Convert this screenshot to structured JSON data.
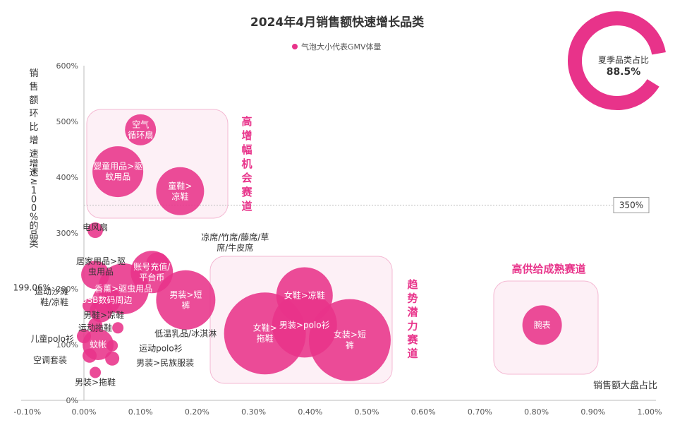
{
  "colors": {
    "bubble": "#e8338a",
    "bubble_light": "#f06aa8",
    "zone_fill": "#fdf0f6",
    "zone_stroke": "#f4b9d3",
    "text": "#333333",
    "grid": "#bbbbbb"
  },
  "chart_data": {
    "type": "scatter",
    "title": "2024年4月销售额快速增长品类",
    "legend": "气泡大小代表GMV体量",
    "xlabel": "销售额大盘占比",
    "ylabel": [
      "销",
      "售",
      "额",
      "环",
      "比",
      "增",
      "速",
      "*",
      "增",
      "速",
      "≥",
      "1",
      "0",
      "0",
      "%",
      "的",
      "品",
      "类"
    ],
    "xlim": [
      -0.1,
      1.0
    ],
    "ylim": [
      0,
      600
    ],
    "x_ticks": [
      "-0.10%",
      "0.00%",
      "0.10%",
      "0.20%",
      "0.30%",
      "0.40%",
      "0.50%",
      "0.60%",
      "0.70%",
      "0.80%",
      "0.90%",
      "1.00%"
    ],
    "y_ticks": [
      "0%",
      "100%",
      "200%",
      "300%",
      "400%",
      "500%",
      "600%"
    ],
    "reference_line": {
      "y": 350,
      "label": "350%"
    },
    "annotation_y": {
      "y": 199.06,
      "label": "199.06%"
    },
    "donut": {
      "label": "夏季品类占比",
      "value_label": "88.5%",
      "value": 88.5
    },
    "zones": [
      {
        "name": "高增幅机会赛道",
        "chars": [
          "高",
          "增",
          "幅",
          "机",
          "会",
          "赛",
          "道"
        ]
      },
      {
        "name": "趋势潜力赛道",
        "chars": [
          "趋",
          "势",
          "潜",
          "力",
          "赛",
          "道"
        ]
      },
      {
        "name": "高供给成熟赛道",
        "chars": [
          "高供给成熟赛道"
        ]
      }
    ],
    "series": [
      {
        "label": [
          "空气",
          "循环扇"
        ],
        "x": 0.1,
        "y": 485,
        "size": 22,
        "inside": true
      },
      {
        "label": [
          "婴童用品>驱",
          "蚊用品"
        ],
        "x": 0.06,
        "y": 410,
        "size": 36,
        "inside": true
      },
      {
        "label": [
          "童鞋>",
          "凉鞋"
        ],
        "x": 0.17,
        "y": 375,
        "size": 34,
        "inside": true
      },
      {
        "label": [
          "电风扇"
        ],
        "x": 0.02,
        "y": 305,
        "size": 11,
        "inside": false
      },
      {
        "label": [
          "凉席/竹席/藤席/草",
          "席/牛皮席"
        ],
        "x": 0.13,
        "y": 245,
        "size": 16,
        "inside": false
      },
      {
        "label": [
          "账号充值/",
          "平台币"
        ],
        "x": 0.12,
        "y": 230,
        "size": 30,
        "inside": true
      },
      {
        "label": [
          "居家用品>驱",
          "虫用品"
        ],
        "x": 0.02,
        "y": 225,
        "size": 20,
        "inside": false
      },
      {
        "label": [
          "香薰>驱虫用品"
        ],
        "x": 0.07,
        "y": 200,
        "size": 36,
        "inside": true
      },
      {
        "label": [
          "男装>短",
          "裤"
        ],
        "x": 0.18,
        "y": 180,
        "size": 42,
        "inside": true
      },
      {
        "label": [
          "USB数码周边"
        ],
        "x": 0.04,
        "y": 180,
        "size": 20,
        "inside": true
      },
      {
        "label": [
          "运动沙滩",
          "鞋/凉鞋"
        ],
        "x": 0.01,
        "y": 170,
        "size": 10,
        "inside": false
      },
      {
        "label": [
          "男鞋>凉鞋"
        ],
        "x": 0.03,
        "y": 160,
        "size": 16,
        "inside": false
      },
      {
        "label": [
          "运动拖鞋"
        ],
        "x": 0.02,
        "y": 135,
        "size": 10,
        "inside": false
      },
      {
        "label": [
          "低温乳品/冰淇淋"
        ],
        "x": 0.06,
        "y": 130,
        "size": 8,
        "inside": false
      },
      {
        "label": [
          "儿童polo衫"
        ],
        "x": 0.0,
        "y": 115,
        "size": 10,
        "inside": false
      },
      {
        "label": [
          "蚊帐"
        ],
        "x": 0.025,
        "y": 100,
        "size": 22,
        "inside": true
      },
      {
        "label": [
          "运动polo衫"
        ],
        "x": 0.05,
        "y": 98,
        "size": 8,
        "inside": false
      },
      {
        "label": [
          "空调套装"
        ],
        "x": 0.01,
        "y": 80,
        "size": 10,
        "inside": false
      },
      {
        "label": [
          "男装>民族服装"
        ],
        "x": 0.05,
        "y": 75,
        "size": 10,
        "inside": false
      },
      {
        "label": [
          "男装>拖鞋"
        ],
        "x": 0.02,
        "y": 50,
        "size": 8,
        "inside": false
      },
      {
        "label": [
          "女鞋>",
          "拖鞋"
        ],
        "x": 0.32,
        "y": 120,
        "size": 58,
        "inside": true
      },
      {
        "label": [
          "女鞋>凉鞋"
        ],
        "x": 0.39,
        "y": 188,
        "size": 40,
        "inside": true
      },
      {
        "label": [
          "男装>polo衫"
        ],
        "x": 0.39,
        "y": 135,
        "size": 46,
        "inside": true
      },
      {
        "label": [
          "女装>短",
          "裤"
        ],
        "x": 0.47,
        "y": 108,
        "size": 58,
        "inside": true
      },
      {
        "label": [
          "腕表"
        ],
        "x": 0.81,
        "y": 135,
        "size": 28,
        "inside": true
      }
    ]
  }
}
